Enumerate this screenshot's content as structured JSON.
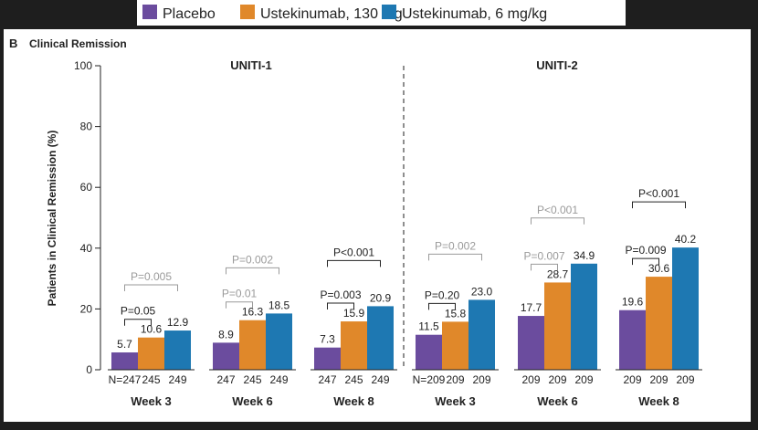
{
  "legend": [
    {
      "label": "Placebo",
      "color": "#6b4c9e"
    },
    {
      "label": "Ustekinumab, 130 mg",
      "color": "#e0882a"
    },
    {
      "label": "Ustekinumab, 6 mg/kg",
      "color": "#1e78b2"
    }
  ],
  "panel": {
    "letter": "B",
    "title": "Clinical Remission"
  },
  "chart_data": {
    "type": "bar",
    "ylabel": "Patients in Clinical Remission (%)",
    "ylim": [
      0,
      100
    ],
    "yticks": [
      0,
      20,
      40,
      60,
      80,
      100
    ],
    "groups": [
      {
        "study": "UNITI-1",
        "weeks": [
          {
            "label": "Week 3",
            "values": [
              5.7,
              10.6,
              12.9
            ],
            "n": [
              "N=247",
              "245",
              "249"
            ],
            "p_pair": "P=0.05",
            "p_pair_gray": false,
            "p_all": "P=0.005",
            "p_all_gray": true
          },
          {
            "label": "Week 6",
            "values": [
              8.9,
              16.3,
              18.5
            ],
            "n": [
              "247",
              "245",
              "249"
            ],
            "p_pair": "P=0.01",
            "p_pair_gray": true,
            "p_all": "P=0.002",
            "p_all_gray": true
          },
          {
            "label": "Week 8",
            "values": [
              7.3,
              15.9,
              20.9
            ],
            "n": [
              "247",
              "245",
              "249"
            ],
            "p_pair": "P=0.003",
            "p_pair_gray": false,
            "p_all": "P<0.001",
            "p_all_gray": false
          }
        ]
      },
      {
        "study": "UNITI-2",
        "weeks": [
          {
            "label": "Week 3",
            "values": [
              11.5,
              15.8,
              23.0
            ],
            "n": [
              "N=209",
              "209",
              "209"
            ],
            "p_pair": "P=0.20",
            "p_pair_gray": false,
            "p_all": "P=0.002",
            "p_all_gray": true
          },
          {
            "label": "Week 6",
            "values": [
              17.7,
              28.7,
              34.9
            ],
            "n": [
              "209",
              "209",
              "209"
            ],
            "p_pair": "P=0.007",
            "p_pair_gray": true,
            "p_all": "P<0.001",
            "p_all_gray": true
          },
          {
            "label": "Week 8",
            "values": [
              19.6,
              30.6,
              40.2
            ],
            "n": [
              "209",
              "209",
              "209"
            ],
            "p_pair": "P=0.009",
            "p_pair_gray": false,
            "p_all": "P<0.001",
            "p_all_gray": false
          }
        ]
      }
    ]
  }
}
